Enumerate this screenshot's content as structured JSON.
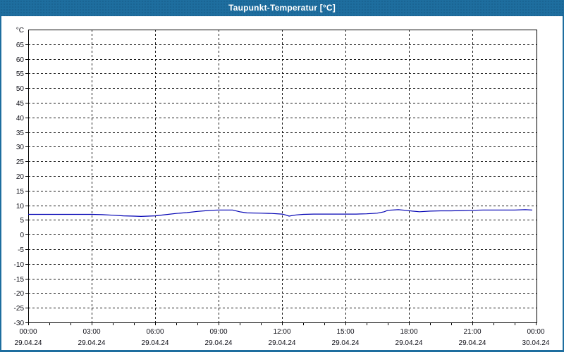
{
  "window": {
    "title": "Taupunkt-Temperatur [°C]"
  },
  "colors": {
    "titlebar": "#1e6e9f",
    "window_border": "#1e6e9f",
    "title_text": "#ffffff",
    "plot_background": "#ffffff",
    "grid": "#1a1a1a",
    "axis": "#000000",
    "axis_text": "#101018",
    "line": "#0000b3"
  },
  "chart_data": {
    "type": "line",
    "title": "Taupunkt-Temperatur [°C]",
    "y_unit": "°C",
    "ylim": [
      -30,
      70
    ],
    "ytick_step": 5,
    "ytick_labels": [
      65,
      60,
      55,
      50,
      45,
      40,
      35,
      30,
      25,
      20,
      15,
      10,
      5,
      0,
      -5,
      -10,
      -15,
      -20,
      -25,
      -30
    ],
    "grid": "dashed",
    "legend": "none",
    "x_minor_tick_minutes": 60,
    "x_ticks": [
      {
        "time": "00:00",
        "date": "29.04.24",
        "minutes": 0
      },
      {
        "time": "03:00",
        "date": "29.04.24",
        "minutes": 180
      },
      {
        "time": "06:00",
        "date": "29.04.24",
        "minutes": 360
      },
      {
        "time": "09:00",
        "date": "29.04.24",
        "minutes": 540
      },
      {
        "time": "12:00",
        "date": "29.04.24",
        "minutes": 720
      },
      {
        "time": "15:00",
        "date": "29.04.24",
        "minutes": 900
      },
      {
        "time": "18:00",
        "date": "29.04.24",
        "minutes": 1080
      },
      {
        "time": "21:00",
        "date": "29.04.24",
        "minutes": 1260
      },
      {
        "time": "00:00",
        "date": "30.04.24",
        "minutes": 1440
      }
    ],
    "series": [
      {
        "name": "Taupunkt-Temperatur",
        "color": "#0000b3",
        "points": [
          [
            "00:00",
            6.9
          ],
          [
            "00:30",
            6.9
          ],
          [
            "01:00",
            6.9
          ],
          [
            "01:30",
            6.9
          ],
          [
            "02:00",
            6.9
          ],
          [
            "02:30",
            6.9
          ],
          [
            "03:00",
            6.9
          ],
          [
            "03:30",
            6.8
          ],
          [
            "04:00",
            6.6
          ],
          [
            "04:30",
            6.4
          ],
          [
            "05:00",
            6.3
          ],
          [
            "05:20",
            6.2
          ],
          [
            "05:40",
            6.3
          ],
          [
            "06:00",
            6.4
          ],
          [
            "06:30",
            6.8
          ],
          [
            "07:00",
            7.2
          ],
          [
            "07:30",
            7.5
          ],
          [
            "08:00",
            7.9
          ],
          [
            "08:20",
            8.1
          ],
          [
            "08:40",
            8.3
          ],
          [
            "09:00",
            8.4
          ],
          [
            "09:40",
            8.4
          ],
          [
            "10:00",
            7.8
          ],
          [
            "10:20",
            7.4
          ],
          [
            "11:00",
            7.3
          ],
          [
            "11:30",
            7.2
          ],
          [
            "12:00",
            7.0
          ],
          [
            "12:10",
            6.7
          ],
          [
            "12:20",
            6.3
          ],
          [
            "12:40",
            6.7
          ],
          [
            "13:00",
            6.9
          ],
          [
            "13:30",
            7.0
          ],
          [
            "14:30",
            7.0
          ],
          [
            "15:30",
            7.0
          ],
          [
            "16:00",
            7.1
          ],
          [
            "16:30",
            7.3
          ],
          [
            "16:50",
            7.8
          ],
          [
            "17:00",
            8.3
          ],
          [
            "17:30",
            8.5
          ],
          [
            "17:50",
            8.3
          ],
          [
            "18:10",
            8.0
          ],
          [
            "18:30",
            7.8
          ],
          [
            "19:00",
            8.0
          ],
          [
            "19:30",
            8.1
          ],
          [
            "20:00",
            8.1
          ],
          [
            "20:30",
            8.2
          ],
          [
            "21:00",
            8.3
          ],
          [
            "21:30",
            8.4
          ],
          [
            "22:00",
            8.4
          ],
          [
            "23:00",
            8.4
          ],
          [
            "23:30",
            8.5
          ],
          [
            "23:50",
            8.4
          ]
        ]
      }
    ]
  }
}
